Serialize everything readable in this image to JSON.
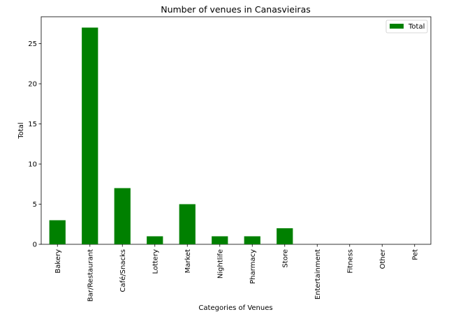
{
  "chart_data": {
    "type": "bar",
    "title": "Number of venues in Canasvieiras",
    "xlabel": "Categories of Venues",
    "ylabel": "Total",
    "categories": [
      "Bakery",
      "Bar/Restaurant",
      "Café/Snacks",
      "Lottery",
      "Market",
      "Nightlife",
      "Pharmacy",
      "Store",
      "Entertainment",
      "Fitness",
      "Other",
      "Pet"
    ],
    "series": [
      {
        "name": "Total",
        "values": [
          3,
          27,
          7,
          1,
          5,
          1,
          1,
          2,
          0,
          0,
          0,
          0
        ],
        "color": "#008000"
      }
    ],
    "ylim": [
      0,
      28.35
    ],
    "yticks": [
      0,
      5,
      10,
      15,
      20,
      25
    ],
    "grid": false,
    "legend_position": "top-right"
  }
}
